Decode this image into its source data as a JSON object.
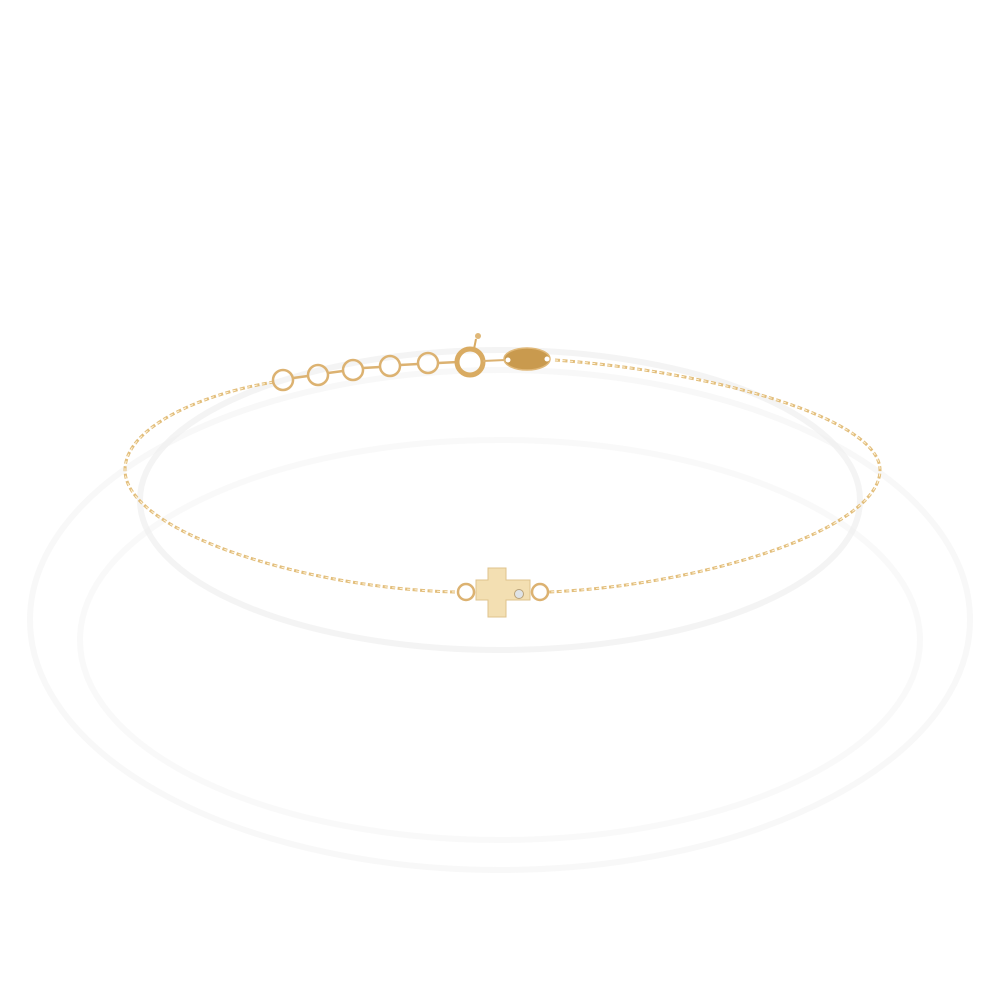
{
  "product_image": {
    "subject": "bracelet",
    "colors": {
      "background": "#ffffff",
      "gold": "#e2be7c",
      "gold_dark": "#c99a4e",
      "cross_face": "#f3dfb2",
      "stone": "#dfe3e6"
    }
  }
}
